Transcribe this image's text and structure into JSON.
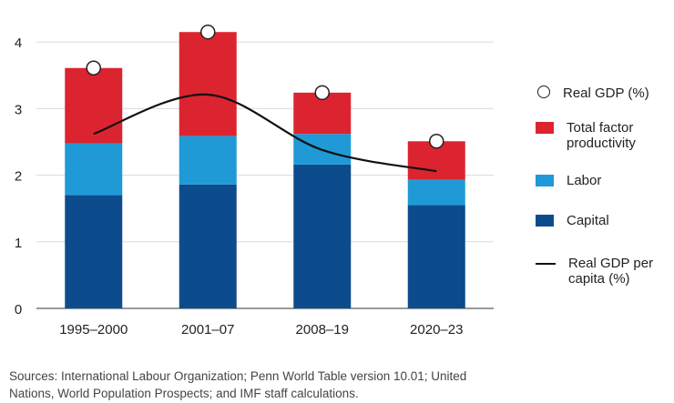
{
  "chart_data": {
    "type": "bar",
    "stacked": true,
    "categories": [
      "1995–2000",
      "2001–07",
      "2008–19",
      "2020–23"
    ],
    "series": [
      {
        "name": "Capital",
        "color": "#0d4c8c",
        "values": [
          1.7,
          1.86,
          2.16,
          1.55
        ]
      },
      {
        "name": "Labor",
        "color": "#1f9ad6",
        "values": [
          0.78,
          0.73,
          0.46,
          0.38
        ]
      },
      {
        "name": "Total factor productivity",
        "color": "#dc2430",
        "values": [
          1.13,
          1.56,
          0.62,
          0.58
        ]
      }
    ],
    "markers": {
      "name": "Real GDP (%)",
      "values": [
        3.61,
        4.15,
        3.24,
        2.51
      ]
    },
    "line": {
      "name": "Real GDP per capita (%)",
      "color": "#111111",
      "values": [
        2.62,
        3.21,
        2.38,
        2.06
      ]
    },
    "ylim": [
      0,
      4.3
    ],
    "yticks": [
      0,
      1,
      2,
      3,
      4
    ],
    "grid": true,
    "legend_position": "right"
  },
  "legend": {
    "gdp": "Real GDP (%)",
    "tfp_line1": "Total factor",
    "tfp_line2": "productivity",
    "labor": "Labor",
    "capital": "Capital",
    "percap_line1": "Real GDP per",
    "percap_line2": "capita (%)"
  },
  "source_line1": "Sources: International Labour Organization; Penn World Table version 10.01; United",
  "source_line2": "Nations, World Population Prospects; and IMF staff calculations."
}
